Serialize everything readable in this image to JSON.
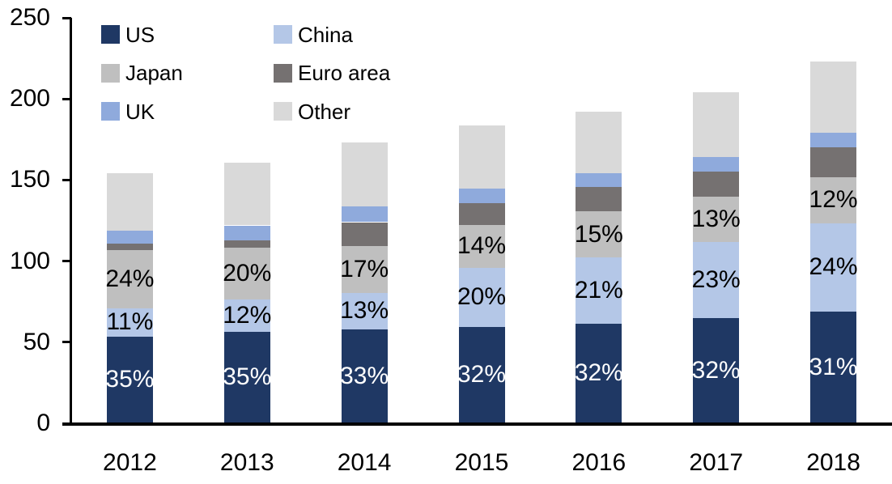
{
  "chart_data": {
    "type": "bar",
    "stacked": true,
    "title": "",
    "xlabel": "",
    "ylabel": "",
    "categories": [
      "2012",
      "2013",
      "2014",
      "2015",
      "2016",
      "2017",
      "2018"
    ],
    "series": [
      {
        "name": "US",
        "color": "#1F3864",
        "values": [
          53.5,
          56.5,
          58,
          59.5,
          61.5,
          65,
          69
        ],
        "labels": [
          "35%",
          "35%",
          "33%",
          "32%",
          "32%",
          "32%",
          "31%"
        ],
        "label_color": "#FFFFFF"
      },
      {
        "name": "China",
        "color": "#B4C7E7",
        "values": [
          17.5,
          20,
          22.5,
          36.5,
          41,
          47,
          54.5
        ],
        "labels": [
          "11%",
          "12%",
          "13%",
          "20%",
          "21%",
          "23%",
          "24%"
        ],
        "label_color": "#000000"
      },
      {
        "name": "Japan",
        "color": "#BFBFBF",
        "values": [
          36,
          32,
          29,
          26.5,
          28,
          27.5,
          28
        ],
        "labels": [
          "24%",
          "20%",
          "17%",
          "14%",
          "15%",
          "13%",
          "12%"
        ],
        "label_color": "#000000"
      },
      {
        "name": "Euro area",
        "color": "#757171",
        "values": [
          4,
          4.5,
          14.5,
          13,
          15,
          15.5,
          18.5
        ],
        "labels": null,
        "label_color": null
      },
      {
        "name": "UK",
        "color": "#8FAADC",
        "values": [
          8,
          9,
          9.5,
          9,
          8.5,
          9,
          9
        ],
        "labels": null,
        "label_color": null
      },
      {
        "name": "Other",
        "color": "#D9D9D9",
        "values": [
          35,
          38.5,
          39.5,
          39,
          38,
          40,
          44
        ],
        "labels": null,
        "label_color": null
      }
    ],
    "ylim": [
      0,
      250
    ],
    "yticks": [
      0,
      50,
      100,
      150,
      200,
      250
    ],
    "grid": false,
    "legend_position": "top-left",
    "legend_columns": 2,
    "axis_color": "#000000",
    "background_color": "#FFFFFF"
  }
}
